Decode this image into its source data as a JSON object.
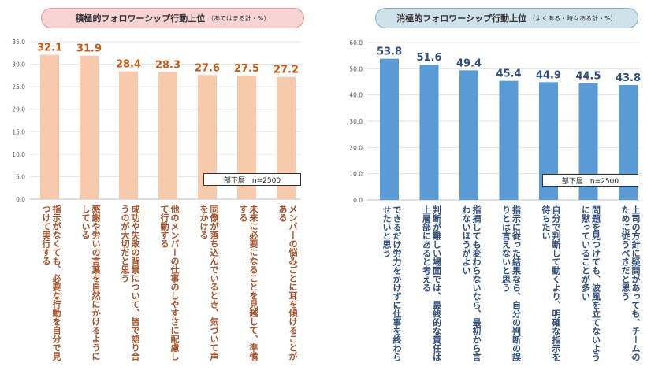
{
  "chart_data": [
    {
      "type": "bar",
      "title": "積極的フォロワーシップ行動上位",
      "subtitle": "（あてはまる計・%）",
      "legend": "部下層　n=2500",
      "ylim": [
        0,
        35
      ],
      "yticks": [
        "0.0",
        "5.0",
        "10.0",
        "15.0",
        "20.0",
        "25.0",
        "30.0",
        "35.0"
      ],
      "values": [
        32.1,
        31.9,
        28.4,
        28.3,
        27.6,
        27.5,
        27.2
      ],
      "value_labels": [
        "32.1",
        "31.9",
        "28.4",
        "28.3",
        "27.6",
        "27.5",
        "27.2"
      ],
      "categories": [
        "指示がなくても、必要な行動を自分で見つけて実行する",
        "感謝や労いの言葉を自然にかけるようにしている",
        "成功や失敗の背景について、皆で語り合うのが大切だと思う",
        "他のメンバーの仕事のしやすさに配慮して行動する",
        "同僚が落ち込んでいるとき、気づいて声をかける",
        "未来に必要になることを見越して、準備する",
        "メンバーの悩みごとに耳を傾けることがある"
      ],
      "colors": {
        "bar": "#f7c9ad",
        "label": "#c55a11",
        "category": "#a4522b"
      }
    },
    {
      "type": "bar",
      "title": "消極的フォロワーシップ行動上位",
      "subtitle": "（よくある・時々ある計・%）",
      "legend": "部下層　n=2500",
      "ylim": [
        0,
        60
      ],
      "yticks": [
        "0.0",
        "10.0",
        "20.0",
        "30.0",
        "40.0",
        "50.0",
        "60.0"
      ],
      "values": [
        53.8,
        51.6,
        49.4,
        45.4,
        44.9,
        44.5,
        43.8
      ],
      "value_labels": [
        "53.8",
        "51.6",
        "49.4",
        "45.4",
        "44.9",
        "44.5",
        "43.8"
      ],
      "categories": [
        "できるだけ労力をかけずに仕事を終わらせたいと思う",
        "判断が難しい場面では、最終的な責任は上層部にあると考える",
        "指摘しても変わらないなら、最初から言わないほうがよい",
        "指示に従った結果なら、自分の判断の誤りとは言えないと思う",
        "自分で判断して動くより、明確な指示を待ちたい",
        "問題を見つけても、波風を立てないように黙っていることが多い",
        "上司の方針に疑問があっても、チームのために従うべきだと思う"
      ],
      "colors": {
        "bar": "#5b9bd5",
        "label": "#2f4d7a",
        "category": "#2f4d7a"
      }
    }
  ]
}
